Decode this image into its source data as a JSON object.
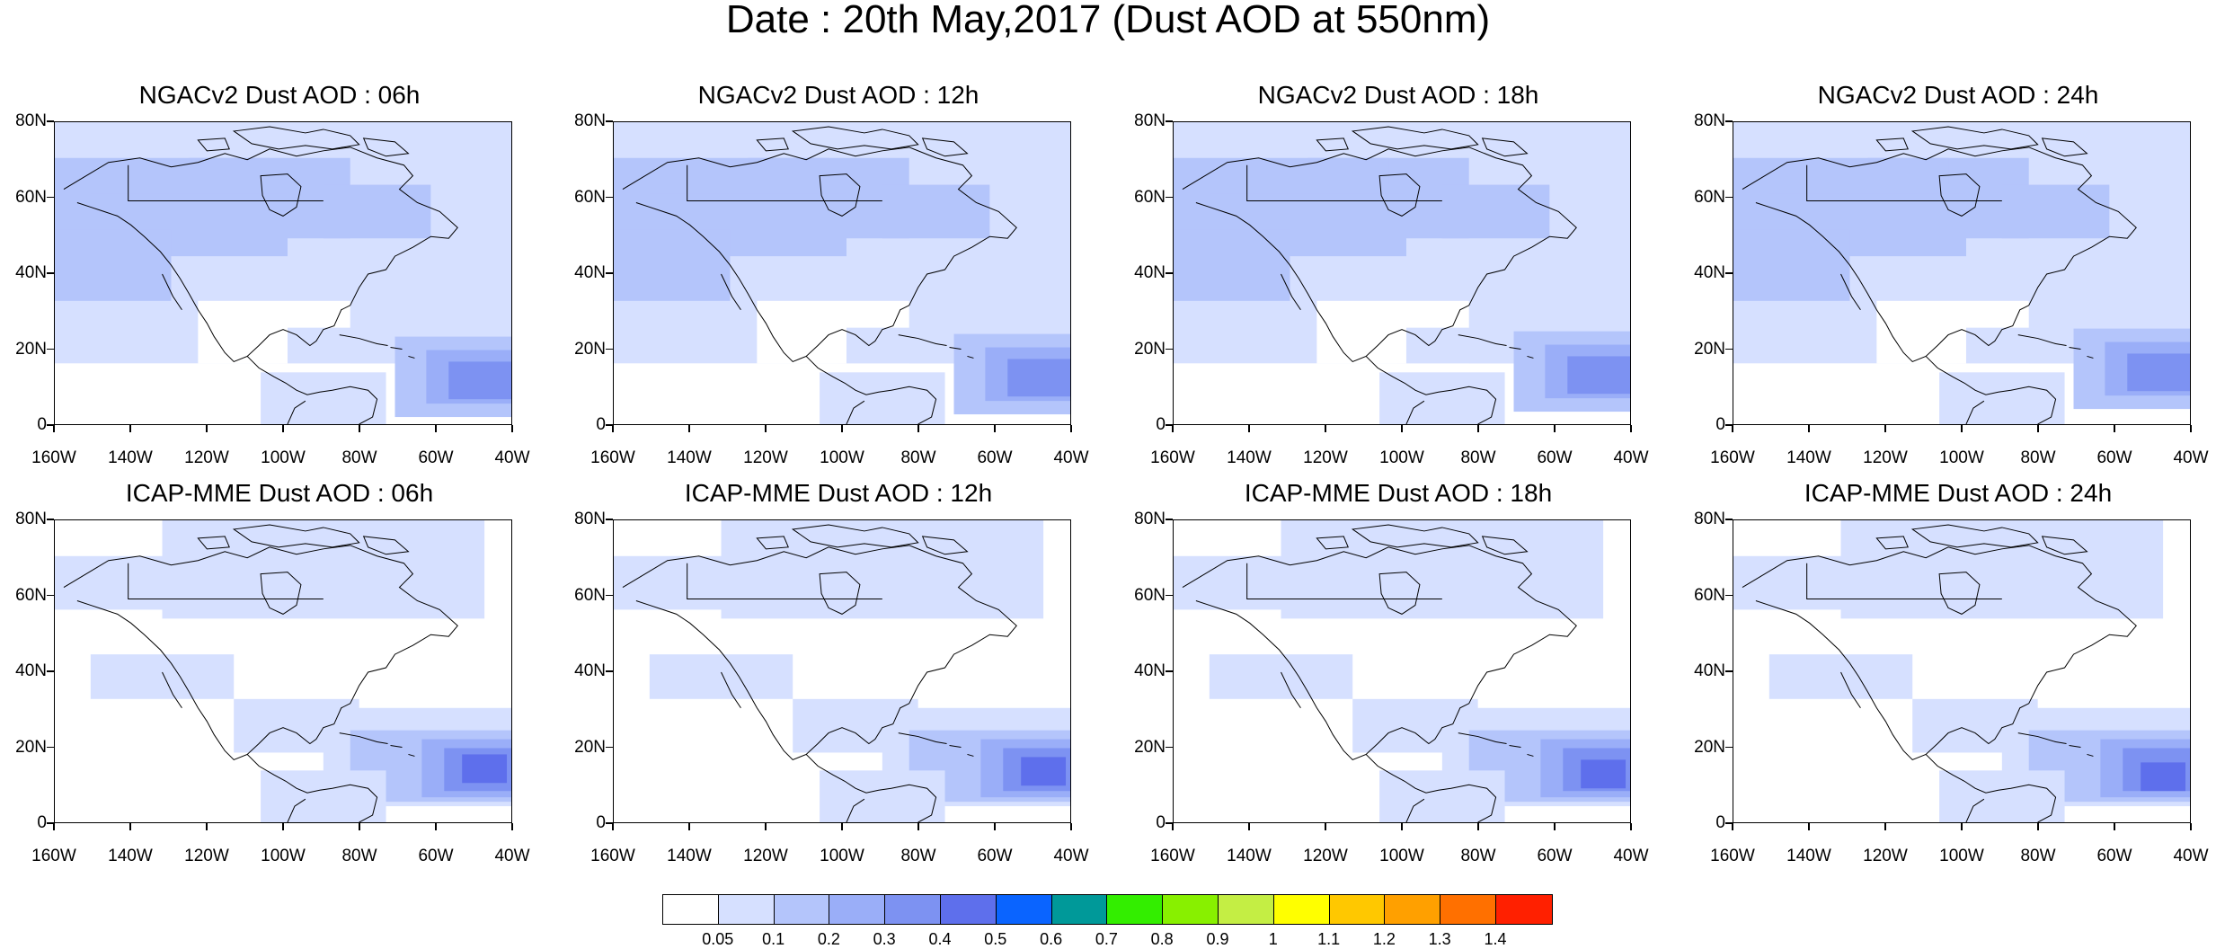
{
  "main_title": "Date : 20th May,2017 (Dust AOD at 550nm)",
  "panels": [
    {
      "title": "NGACv2 Dust AOD : 06h",
      "model": "NGAC"
    },
    {
      "title": "NGACv2 Dust AOD : 12h",
      "model": "NGAC"
    },
    {
      "title": "NGACv2 Dust AOD : 18h",
      "model": "NGAC"
    },
    {
      "title": "NGACv2 Dust AOD : 24h",
      "model": "NGAC"
    },
    {
      "title": "ICAP-MME Dust AOD : 06h",
      "model": "ICAP"
    },
    {
      "title": "ICAP-MME Dust AOD : 12h",
      "model": "ICAP"
    },
    {
      "title": "ICAP-MME Dust AOD : 18h",
      "model": "ICAP"
    },
    {
      "title": "ICAP-MME Dust AOD : 24h",
      "model": "ICAP"
    }
  ],
  "y_ticks": [
    "80N",
    "60N",
    "40N",
    "20N",
    "0"
  ],
  "x_ticks": [
    "160W",
    "140W",
    "120W",
    "100W",
    "80W",
    "60W",
    "40W"
  ],
  "colorbar": {
    "colors": [
      "#ffffff",
      "#d6e0ff",
      "#b4c5fb",
      "#9aaef8",
      "#7d92f2",
      "#5e6fec",
      "#0a64ff",
      "#009999",
      "#33ee00",
      "#88f000",
      "#c4ee44",
      "#ffff00",
      "#ffc800",
      "#ffa000",
      "#ff7000",
      "#ff2000"
    ],
    "labels": [
      "0.05",
      "0.1",
      "0.2",
      "0.3",
      "0.4",
      "0.5",
      "0.6",
      "0.7",
      "0.8",
      "0.9",
      "1",
      "1.1",
      "1.2",
      "1.3",
      "1.4"
    ]
  }
}
